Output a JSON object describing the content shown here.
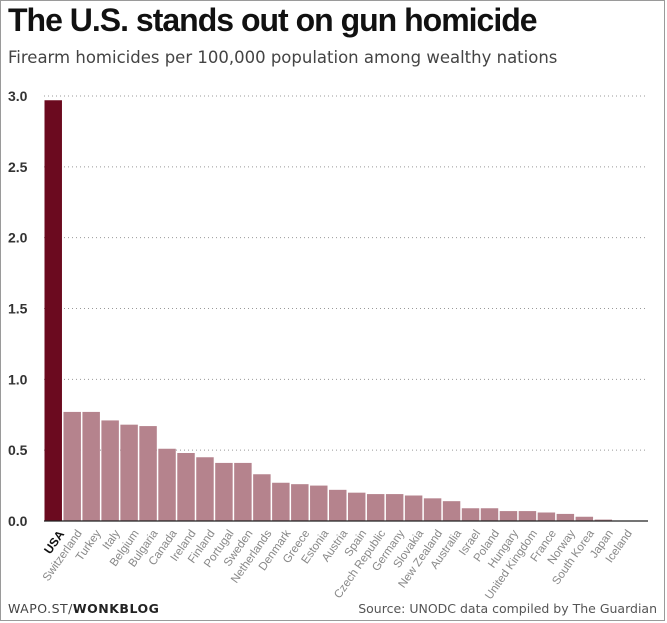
{
  "chart_data": {
    "type": "bar",
    "title": "The U.S. stands out on gun homicide",
    "subtitle": "Firearm homicides per 100,000 population among wealthy nations",
    "ylabel": "",
    "xlabel": "",
    "ylim": [
      0,
      3.0
    ],
    "yticks": [
      "0.0",
      "0.5",
      "1.0",
      "1.5",
      "2.0",
      "2.5",
      "3.0"
    ],
    "grid": true,
    "highlight": "USA",
    "categories": [
      "USA",
      "Switzerland",
      "Turkey",
      "Italy",
      "Belgium",
      "Bulgaria",
      "Canada",
      "Ireland",
      "Finland",
      "Portugal",
      "Sweden",
      "Netherlands",
      "Denmark",
      "Greece",
      "Estonia",
      "Austria",
      "Spain",
      "Czech Republic",
      "Germany",
      "Slovakia",
      "New Zealand",
      "Australia",
      "Israel",
      "Poland",
      "Hungary",
      "United Kingdom",
      "France",
      "Norway",
      "South Korea",
      "Japan",
      "Iceland"
    ],
    "values": [
      2.97,
      0.77,
      0.77,
      0.71,
      0.68,
      0.67,
      0.51,
      0.48,
      0.45,
      0.41,
      0.41,
      0.33,
      0.27,
      0.26,
      0.25,
      0.22,
      0.2,
      0.19,
      0.19,
      0.18,
      0.16,
      0.14,
      0.09,
      0.09,
      0.07,
      0.07,
      0.06,
      0.05,
      0.03,
      0.01,
      0.0
    ]
  },
  "colors": {
    "highlight_bar": "#6b0a1f",
    "bar": "#b5838d",
    "grid": "#999999"
  },
  "footer": {
    "left_prefix": "WAPO.ST/",
    "left_brand": "WONKBLOG",
    "source": "Source: UNODC data compiled by The Guardian"
  }
}
